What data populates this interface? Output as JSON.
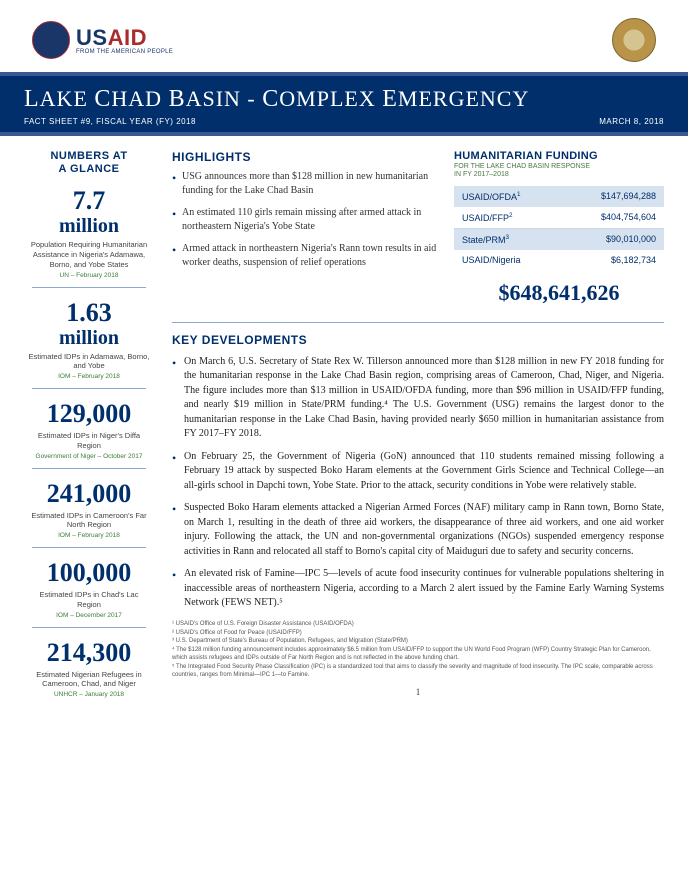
{
  "logos": {
    "usaid_name_part1": "US",
    "usaid_name_part2": "AID",
    "usaid_sub": "FROM THE AMERICAN PEOPLE"
  },
  "title": {
    "text": "LAKE CHAD BASIN - COMPLEX EMERGENCY",
    "factsheet": "FACT SHEET #9, FISCAL YEAR (FY) 2018",
    "date": "MARCH 8, 2018"
  },
  "naag": {
    "heading_l1": "NUMBERS AT",
    "heading_l2": "A GLANCE",
    "stats": [
      {
        "num": "7.7",
        "unit": "million",
        "desc": "Population Requiring Humanitarian Assistance in Nigeria's Adamawa, Borno, and Yobe States",
        "src": "UN – February 2018"
      },
      {
        "num": "1.63",
        "unit": "million",
        "desc": "Estimated IDPs in Adamawa, Borno, and Yobe",
        "src": "IOM – February 2018"
      },
      {
        "num": "129,000",
        "unit": "",
        "desc": "Estimated IDPs in Niger's Diffa Region",
        "src": "Government of Niger – October 2017"
      },
      {
        "num": "241,000",
        "unit": "",
        "desc": "Estimated IDPs in Cameroon's Far North Region",
        "src": "IOM – February 2018"
      },
      {
        "num": "100,000",
        "unit": "",
        "desc": "Estimated IDPs in Chad's Lac Region",
        "src": "IOM – December 2017"
      },
      {
        "num": "214,300",
        "unit": "",
        "desc": "Estimated Nigerian Refugees in Cameroon, Chad, and Niger",
        "src": "UNHCR – January 2018"
      }
    ]
  },
  "highlights": {
    "heading": "HIGHLIGHTS",
    "items": [
      "USG announces more than $128 million in new humanitarian funding for the Lake Chad Basin",
      "An estimated 110 girls remain missing after armed attack in northeastern Nigeria's Yobe State",
      "Armed attack in northeastern Nigeria's Rann town results in aid worker deaths, suspension of relief operations"
    ]
  },
  "funding": {
    "heading": "HUMANITARIAN FUNDING",
    "sub_l1": "FOR THE LAKE CHAD BASIN RESPONSE",
    "sub_l2": "IN FY 2017–2018",
    "rows": [
      {
        "label": "USAID/OFDA",
        "sup": "1",
        "amount": "$147,694,288",
        "shade": true
      },
      {
        "label": "USAID/FFP",
        "sup": "2",
        "amount": "$404,754,604",
        "shade": false
      },
      {
        "label": "State/PRM",
        "sup": "3",
        "amount": "$90,010,000",
        "shade": true
      },
      {
        "label": "USAID/Nigeria",
        "sup": "",
        "amount": "$6,182,734",
        "shade": false
      }
    ],
    "total": "$648,641,626"
  },
  "keydev": {
    "heading": "KEY DEVELOPMENTS",
    "items": [
      "On March 6, U.S. Secretary of State Rex W. Tillerson announced more than $128 million in new FY 2018 funding for the humanitarian response in the Lake Chad Basin region, comprising areas of Cameroon, Chad, Niger, and Nigeria. The figure includes more than $13 million in USAID/OFDA funding, more than $96 million in USAID/FFP funding, and nearly $19 million in State/PRM funding.⁴ The U.S. Government (USG) remains the largest donor to the humanitarian response in the Lake Chad Basin, having provided nearly $650 million in humanitarian assistance from FY 2017–FY 2018.",
      "On February 25, the Government of Nigeria (GoN) announced that 110 students remained missing following a February 19 attack by suspected Boko Haram elements at the Government Girls Science and Technical College—an all-girls school in Dapchi town, Yobe State. Prior to the attack, security conditions in Yobe were relatively stable.",
      "Suspected Boko Haram elements attacked a Nigerian Armed Forces (NAF) military camp in Rann town, Borno State, on March 1, resulting in the death of three aid workers, the disappearance of three aid workers, and one aid worker injury. Following the attack, the UN and non-governmental organizations (NGOs) suspended emergency response activities in Rann and relocated all staff to Borno's capital city of Maiduguri due to safety and security concerns.",
      "An elevated risk of Famine—IPC 5—levels of acute food insecurity continues for vulnerable populations sheltering in inaccessible areas of northeastern Nigeria, according to a March 2 alert issued by the Famine Early Warning Systems Network (FEWS NET).⁵"
    ]
  },
  "footnotes": [
    "¹ USAID's Office of U.S. Foreign Disaster Assistance (USAID/OFDA)",
    "² USAID's Office of Food for Peace (USAID/FFP)",
    "³ U.S. Department of State's Bureau of Population, Refugees, and Migration (State/PRM)",
    "⁴ The $128 million funding announcement includes approximately $6.5 million from USAID/FFP to support the UN World Food Program (WFP) Country Strategic Plan for Cameroon, which assists refugees and IDPs outside of Far North Region and is not reflected in the above funding chart.",
    "⁵ The Integrated Food Security Phase Classification (IPC) is a standardized tool that aims to classify the severity and magnitude of food insecurity. The IPC scale, comparable across countries, ranges from Minimal—IPC 1—to Famine."
  ],
  "page_number": "1",
  "colors": {
    "primary_blue": "#002f6c",
    "light_blue_shade": "#d6e2ef",
    "divider": "#8aa8cf",
    "green_text": "#3d7d39"
  }
}
